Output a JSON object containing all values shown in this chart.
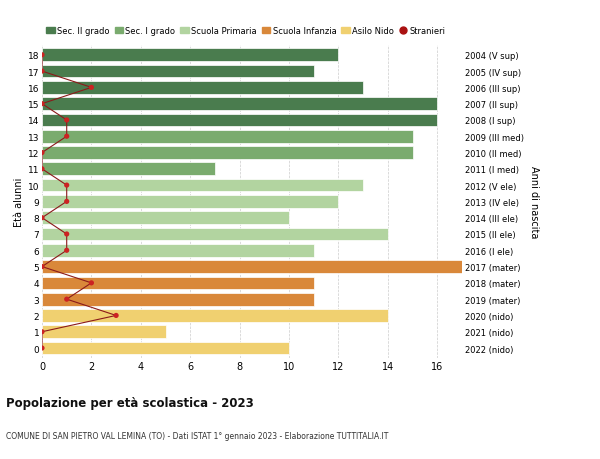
{
  "ages": [
    18,
    17,
    16,
    15,
    14,
    13,
    12,
    11,
    10,
    9,
    8,
    7,
    6,
    5,
    4,
    3,
    2,
    1,
    0
  ],
  "years": [
    "2004 (V sup)",
    "2005 (IV sup)",
    "2006 (III sup)",
    "2007 (II sup)",
    "2008 (I sup)",
    "2009 (III med)",
    "2010 (II med)",
    "2011 (I med)",
    "2012 (V ele)",
    "2013 (IV ele)",
    "2014 (III ele)",
    "2015 (II ele)",
    "2016 (I ele)",
    "2017 (mater)",
    "2018 (mater)",
    "2019 (mater)",
    "2020 (nido)",
    "2021 (nido)",
    "2022 (nido)"
  ],
  "values": [
    12,
    11,
    13,
    16,
    16,
    15,
    15,
    7,
    13,
    12,
    10,
    14,
    11,
    17,
    11,
    11,
    14,
    5,
    10
  ],
  "bar_colors": [
    "#4a7c4e",
    "#4a7c4e",
    "#4a7c4e",
    "#4a7c4e",
    "#4a7c4e",
    "#7aab6e",
    "#7aab6e",
    "#7aab6e",
    "#b2d4a0",
    "#b2d4a0",
    "#b2d4a0",
    "#b2d4a0",
    "#b2d4a0",
    "#d9883a",
    "#d9883a",
    "#d9883a",
    "#f0d070",
    "#f0d070",
    "#f0d070"
  ],
  "stranieri": [
    0,
    0,
    2,
    0,
    1,
    1,
    0,
    0,
    1,
    1,
    0,
    1,
    1,
    0,
    2,
    1,
    3,
    0,
    0
  ],
  "legend_labels": [
    "Sec. II grado",
    "Sec. I grado",
    "Scuola Primaria",
    "Scuola Infanzia",
    "Asilo Nido",
    "Stranieri"
  ],
  "legend_colors": [
    "#4a7c4e",
    "#7aab6e",
    "#b2d4a0",
    "#d9883a",
    "#f0d070",
    "#aa1111"
  ],
  "title": "Popolazione per età scolastica - 2023",
  "subtitle": "COMUNE DI SAN PIETRO VAL LEMINA (TO) - Dati ISTAT 1° gennaio 2023 - Elaborazione TUTTITALIA.IT",
  "ylabel": "Età alunni",
  "right_label": "Anni di nascita",
  "xlim": [
    0,
    17
  ],
  "background_color": "#ffffff",
  "grid_color": "#cccccc",
  "bar_height": 0.78
}
